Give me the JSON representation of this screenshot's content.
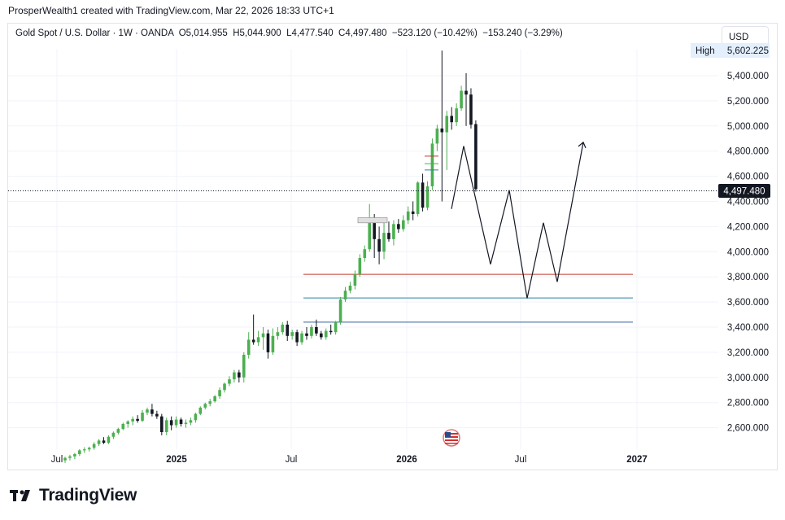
{
  "header": {
    "attribution": "ProsperWealth1 created with TradingView.com, Mar 22, 2026 18:33 UTC+1"
  },
  "legend": {
    "symbol": "Gold Spot / U.S. Dollar · 1W · OANDA",
    "open": "O5,014.955",
    "high": "H5,044.900",
    "low": "L4,477.540",
    "close": "C4,497.480",
    "change": "−523.120 (−10.42%)",
    "extra": "−153.240 (−3.29%)"
  },
  "currency_button": "USD",
  "high_badge": {
    "label": "High",
    "value": "5,602.225"
  },
  "last_price_label": "4,497.480",
  "branding": "TradingView",
  "colors": {
    "up": "#4caf50",
    "down": "#131722",
    "last_price_bg": "#131722",
    "red_level": "#c0392b",
    "teal_level": "#2a7fa8",
    "blue_level": "#2f5f9e"
  },
  "chart_data": {
    "type": "candlestick",
    "instrument": "Gold Spot / U.S. Dollar",
    "timeframe": "1W",
    "y_axis": {
      "ticks": [
        "2,600.000",
        "2,800.000",
        "3,000.000",
        "3,200.000",
        "3,400.000",
        "3,600.000",
        "3,800.000",
        "4,000.000",
        "4,200.000",
        "4,400.000",
        "4,600.000",
        "4,800.000",
        "5,000.000",
        "5,200.000",
        "5,400.000"
      ],
      "range": [
        2420,
        5700
      ]
    },
    "x_axis": {
      "ticks": [
        "Jul",
        "2025",
        "Jul",
        "2026",
        "Jul",
        "2027"
      ]
    },
    "last_price": 4497.48,
    "high": 5602.225,
    "horizontal_levels": [
      {
        "price": 3820,
        "color": "red"
      },
      {
        "price": 3632,
        "color": "teal"
      },
      {
        "price": 3440,
        "color": "blue"
      }
    ],
    "projection_path": [
      4340,
      4840,
      3900,
      4490,
      3630,
      4230,
      3760,
      4870
    ],
    "candles": [
      [
        2340,
        2370,
        2320,
        2360
      ],
      [
        2360,
        2385,
        2340,
        2372
      ],
      [
        2372,
        2400,
        2350,
        2390
      ],
      [
        2390,
        2430,
        2375,
        2420
      ],
      [
        2420,
        2445,
        2400,
        2428
      ],
      [
        2428,
        2450,
        2410,
        2440
      ],
      [
        2440,
        2485,
        2425,
        2470
      ],
      [
        2470,
        2510,
        2455,
        2498
      ],
      [
        2498,
        2525,
        2470,
        2480
      ],
      [
        2480,
        2540,
        2470,
        2528
      ],
      [
        2528,
        2570,
        2510,
        2560
      ],
      [
        2560,
        2600,
        2545,
        2590
      ],
      [
        2590,
        2640,
        2580,
        2630
      ],
      [
        2630,
        2660,
        2600,
        2650
      ],
      [
        2650,
        2690,
        2620,
        2670
      ],
      [
        2670,
        2700,
        2640,
        2655
      ],
      [
        2655,
        2740,
        2645,
        2720
      ],
      [
        2720,
        2760,
        2700,
        2745
      ],
      [
        2745,
        2790,
        2690,
        2710
      ],
      [
        2710,
        2735,
        2670,
        2690
      ],
      [
        2690,
        2710,
        2540,
        2565
      ],
      [
        2565,
        2680,
        2540,
        2660
      ],
      [
        2660,
        2690,
        2580,
        2620
      ],
      [
        2620,
        2690,
        2600,
        2665
      ],
      [
        2665,
        2680,
        2610,
        2630
      ],
      [
        2630,
        2665,
        2600,
        2640
      ],
      [
        2640,
        2680,
        2620,
        2660
      ],
      [
        2660,
        2720,
        2640,
        2710
      ],
      [
        2710,
        2770,
        2700,
        2760
      ],
      [
        2760,
        2800,
        2745,
        2790
      ],
      [
        2790,
        2830,
        2770,
        2810
      ],
      [
        2810,
        2860,
        2800,
        2850
      ],
      [
        2850,
        2920,
        2830,
        2900
      ],
      [
        2900,
        2960,
        2880,
        2950
      ],
      [
        2950,
        3010,
        2930,
        2985
      ],
      [
        2985,
        3060,
        2960,
        3040
      ],
      [
        3040,
        3060,
        2960,
        3000
      ],
      [
        3000,
        3200,
        2960,
        3180
      ],
      [
        3180,
        3360,
        3150,
        3300
      ],
      [
        3300,
        3500,
        3260,
        3280
      ],
      [
        3280,
        3370,
        3250,
        3320
      ],
      [
        3320,
        3400,
        3220,
        3350
      ],
      [
        3350,
        3380,
        3150,
        3200
      ],
      [
        3200,
        3390,
        3180,
        3330
      ],
      [
        3330,
        3400,
        3300,
        3360
      ],
      [
        3360,
        3440,
        3340,
        3420
      ],
      [
        3420,
        3450,
        3290,
        3330
      ],
      [
        3330,
        3380,
        3300,
        3360
      ],
      [
        3360,
        3380,
        3250,
        3280
      ],
      [
        3280,
        3370,
        3260,
        3350
      ],
      [
        3350,
        3400,
        3300,
        3330
      ],
      [
        3330,
        3420,
        3310,
        3400
      ],
      [
        3400,
        3460,
        3330,
        3350
      ],
      [
        3350,
        3370,
        3300,
        3320
      ],
      [
        3320,
        3390,
        3300,
        3370
      ],
      [
        3370,
        3420,
        3340,
        3360
      ],
      [
        3360,
        3450,
        3340,
        3440
      ],
      [
        3440,
        3640,
        3420,
        3620
      ],
      [
        3620,
        3720,
        3600,
        3690
      ],
      [
        3690,
        3760,
        3670,
        3730
      ],
      [
        3730,
        3850,
        3700,
        3820
      ],
      [
        3820,
        3980,
        3800,
        3950
      ],
      [
        3950,
        4050,
        3920,
        4020
      ],
      [
        4020,
        4380,
        4000,
        4250
      ],
      [
        4250,
        4300,
        3950,
        4100
      ],
      [
        4100,
        4200,
        3900,
        4000
      ],
      [
        4000,
        4270,
        3940,
        4150
      ],
      [
        4150,
        4240,
        4080,
        4100
      ],
      [
        4100,
        4250,
        4050,
        4220
      ],
      [
        4220,
        4260,
        4150,
        4180
      ],
      [
        4180,
        4290,
        4160,
        4250
      ],
      [
        4250,
        4360,
        4220,
        4320
      ],
      [
        4320,
        4400,
        4250,
        4300
      ],
      [
        4300,
        4560,
        4280,
        4550
      ],
      [
        4550,
        4620,
        4320,
        4350
      ],
      [
        4350,
        4560,
        4330,
        4520
      ],
      [
        4520,
        4900,
        4490,
        4860
      ],
      [
        4860,
        5010,
        4800,
        4980
      ],
      [
        4980,
        5600,
        4400,
        4950
      ],
      [
        4950,
        5120,
        4650,
        5080
      ],
      [
        5080,
        5150,
        4970,
        5030
      ],
      [
        5030,
        5180,
        5000,
        5140
      ],
      [
        5140,
        5320,
        5120,
        5280
      ],
      [
        5280,
        5420,
        5000,
        5250
      ],
      [
        5250,
        5300,
        4980,
        5010
      ],
      [
        5014.955,
        5044.9,
        4477.54,
        4497.48
      ]
    ]
  }
}
